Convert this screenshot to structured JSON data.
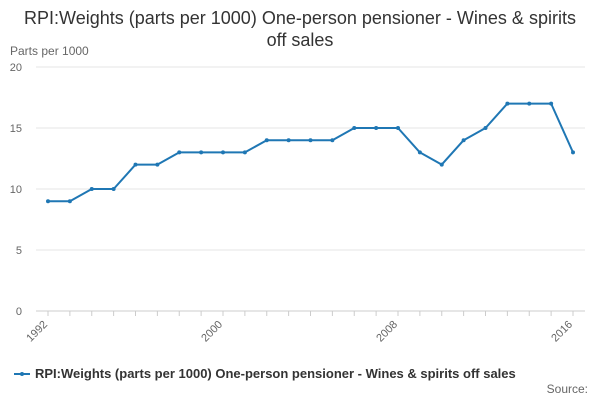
{
  "chart_data": {
    "type": "line",
    "title": "RPI:Weights (parts per 1000) One-person pensioner - Wines & spirits off sales",
    "ylabel": "Parts per 1000",
    "xlabel": "",
    "x": [
      1992,
      1993,
      1994,
      1995,
      1996,
      1997,
      1998,
      1999,
      2000,
      2001,
      2002,
      2003,
      2004,
      2005,
      2006,
      2007,
      2008,
      2009,
      2010,
      2011,
      2012,
      2013,
      2014,
      2015,
      2016
    ],
    "x_tick_labels": [
      "1992",
      "2000",
      "2008",
      "2016"
    ],
    "x_tick_values": [
      1992,
      2000,
      2008,
      2016
    ],
    "y_tick_labels": [
      "0",
      "5",
      "10",
      "15",
      "20"
    ],
    "y_tick_values": [
      0,
      5,
      10,
      15,
      20
    ],
    "ylim": [
      0,
      20
    ],
    "xlim": [
      1992,
      2016
    ],
    "grid": "horizontal",
    "series": [
      {
        "name": "RPI:Weights (parts per 1000) One-person pensioner - Wines & spirits off sales",
        "color": "#1f77b4",
        "values": [
          9,
          9,
          10,
          10,
          12,
          12,
          13,
          13,
          13,
          13,
          14,
          14,
          14,
          14,
          15,
          15,
          15,
          13,
          12,
          14,
          15,
          17,
          17,
          17,
          13
        ]
      }
    ],
    "legend_position": "bottom-left",
    "source_label": "Source:"
  }
}
